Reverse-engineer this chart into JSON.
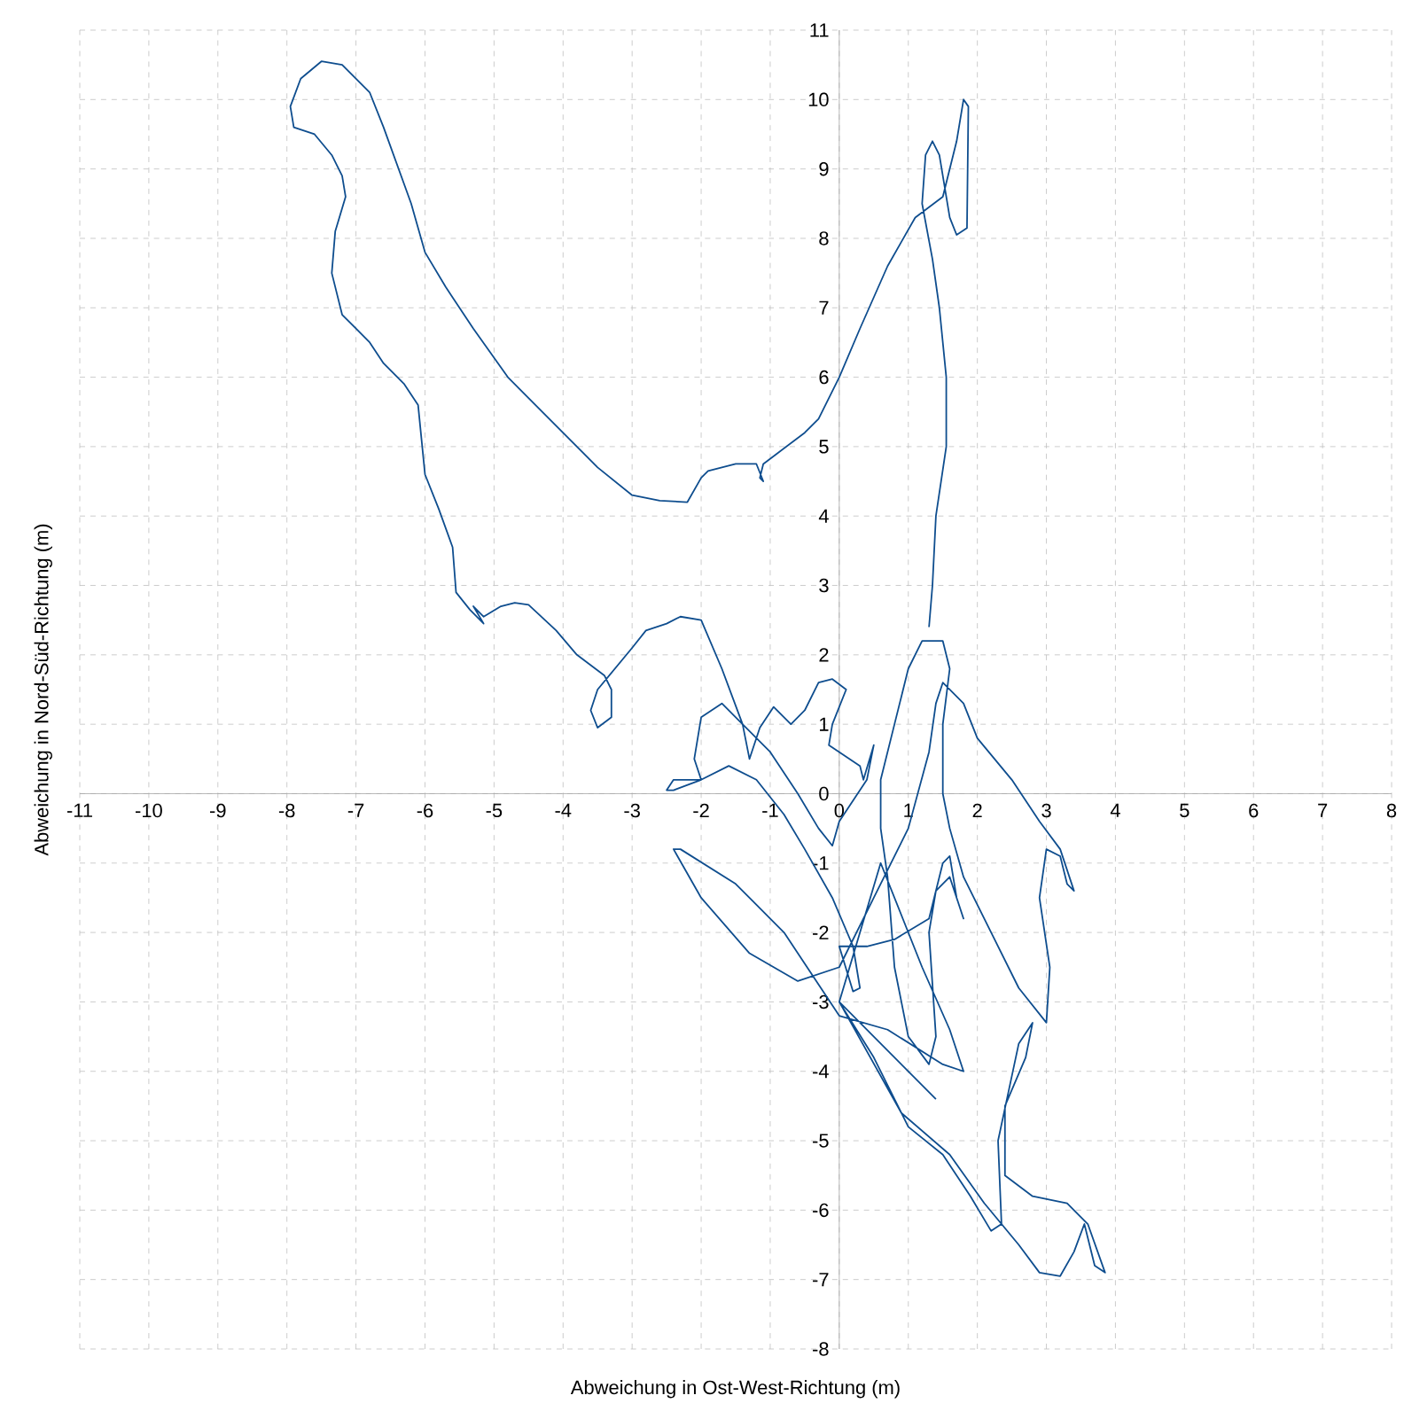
{
  "chart_data": {
    "type": "line",
    "xlabel": "Abweichung in Ost-West-Richtung (m)",
    "ylabel": "Abweichung in Nord-Süd-Richtung (m)",
    "xlim": [
      -11,
      8
    ],
    "ylim": [
      -8,
      11
    ],
    "xticks": [
      -11,
      -10,
      -9,
      -8,
      -7,
      -6,
      -5,
      -4,
      -3,
      -2,
      -1,
      0,
      1,
      2,
      3,
      4,
      5,
      6,
      7,
      8
    ],
    "yticks": [
      -8,
      -7,
      -6,
      -5,
      -4,
      -3,
      -2,
      -1,
      0,
      1,
      2,
      3,
      4,
      5,
      6,
      7,
      8,
      9,
      10,
      11
    ],
    "grid": true,
    "color": "#0e4d8e",
    "x": [
      1.3,
      1.35,
      1.4,
      1.55,
      1.55,
      1.45,
      1.35,
      1.2,
      1.25,
      1.35,
      1.45,
      1.6,
      1.7,
      1.85,
      1.87,
      1.8,
      1.7,
      1.5,
      1.1,
      0.7,
      0.3,
      0,
      -0.3,
      -0.5,
      -0.9,
      -1.1,
      -1.15,
      -1.1,
      -1.2,
      -1.5,
      -1.9,
      -2.0,
      -2.2,
      -2.6,
      -3.0,
      -3.5,
      -4.2,
      -4.8,
      -5.3,
      -5.7,
      -6.0,
      -6.2,
      -6.6,
      -6.8,
      -7.2,
      -7.5,
      -7.8,
      -7.95,
      -7.9,
      -7.6,
      -7.35,
      -7.2,
      -7.15,
      -7.3,
      -7.35,
      -7.2,
      -7.0,
      -6.8,
      -6.6,
      -6.3,
      -6.1,
      -6.05,
      -6.0,
      -5.8,
      -5.6,
      -5.55,
      -5.35,
      -5.15,
      -5.3,
      -5.15,
      -4.9,
      -4.7,
      -4.5,
      -4.1,
      -3.8,
      -3.4,
      -3.3,
      -3.3,
      -3.5,
      -3.6,
      -3.5,
      -3.0,
      -2.8,
      -2.5,
      -2.3,
      -2.0,
      -1.7,
      -1.4,
      -1.3,
      -1.15,
      -0.95,
      -0.7,
      -0.5,
      -0.3,
      -0.1,
      0.1,
      -0.1,
      -0.15,
      0.3,
      0.35,
      0.5,
      0.4,
      0.0,
      -0.1,
      -0.3,
      -0.6,
      -1.0,
      -1.4,
      -1.7,
      -2.0,
      -2.1,
      -2.0,
      -2.4,
      -2.5,
      -2.4,
      -2.0,
      -1.6,
      -1.2,
      -0.8,
      -0.5,
      -0.1,
      0.2,
      0.3,
      0.2,
      0.0,
      0.4,
      0.8,
      1.3,
      1.5,
      1.6,
      1.7,
      1.8,
      1.6,
      1.4,
      1.3,
      1.4,
      1.3,
      1.0,
      0.8,
      0.7,
      0.6,
      0.6,
      0.8,
      1.0,
      1.2,
      1.5,
      1.6,
      1.5,
      1.5,
      1.6,
      1.8,
      2.2,
      2.6,
      3.0,
      3.05,
      2.9,
      3.0,
      3.2,
      3.3,
      3.4,
      3.2,
      2.9,
      2.5,
      2.0,
      1.8,
      1.5,
      1.4,
      1.3,
      1.0,
      0.5,
      0.0,
      -0.6,
      -1.3,
      -2.0,
      -2.4,
      -2.3,
      -1.5,
      -0.8,
      0.0,
      0.7,
      1.5,
      1.8,
      1.6,
      1.2,
      0.6,
      0.0,
      0.5,
      1.0,
      1.5,
      1.9,
      2.2,
      2.35,
      2.3,
      2.6,
      2.8,
      2.7,
      2.4,
      2.4,
      2.8,
      3.3,
      3.6,
      3.85,
      3.7,
      3.55,
      3.4,
      3.2,
      2.9,
      2.6,
      2.1,
      1.6,
      0.9,
      0.0,
      1.4
    ],
    "values": [
      2.4,
      3.0,
      4.0,
      5.0,
      6.0,
      7.0,
      7.7,
      8.5,
      9.2,
      9.4,
      9.2,
      8.3,
      8.05,
      8.15,
      9.9,
      10.0,
      9.4,
      8.6,
      8.3,
      7.6,
      6.7,
      6.0,
      5.4,
      5.2,
      4.9,
      4.75,
      4.55,
      4.5,
      4.75,
      4.75,
      4.65,
      4.55,
      4.2,
      4.22,
      4.3,
      4.7,
      5.4,
      6.0,
      6.7,
      7.3,
      7.8,
      8.5,
      9.6,
      10.1,
      10.5,
      10.55,
      10.3,
      9.9,
      9.6,
      9.5,
      9.2,
      8.9,
      8.6,
      8.1,
      7.5,
      6.9,
      6.7,
      6.5,
      6.2,
      5.9,
      5.6,
      5.1,
      4.6,
      4.1,
      3.55,
      2.9,
      2.65,
      2.45,
      2.7,
      2.55,
      2.7,
      2.75,
      2.72,
      2.35,
      2.0,
      1.7,
      1.5,
      1.1,
      0.95,
      1.2,
      1.5,
      2.1,
      2.35,
      2.45,
      2.55,
      2.5,
      1.8,
      1.0,
      0.5,
      0.95,
      1.25,
      1.0,
      1.2,
      1.6,
      1.65,
      1.5,
      1.0,
      0.7,
      0.4,
      0.2,
      0.7,
      0.2,
      -0.4,
      -0.75,
      -0.5,
      0.0,
      0.6,
      1.0,
      1.3,
      1.1,
      0.5,
      0.2,
      0.2,
      0.05,
      0.05,
      0.2,
      0.4,
      0.2,
      -0.3,
      -0.8,
      -1.5,
      -2.2,
      -2.8,
      -2.85,
      -2.2,
      -2.2,
      -2.1,
      -1.8,
      -1.0,
      -0.9,
      -1.5,
      -1.8,
      -1.2,
      -1.4,
      -2.0,
      -3.5,
      -3.9,
      -3.5,
      -2.5,
      -1.2,
      -0.5,
      0.2,
      1.0,
      1.8,
      2.2,
      2.2,
      1.8,
      1.0,
      0.0,
      -0.5,
      -1.2,
      -2.0,
      -2.8,
      -3.3,
      -2.5,
      -1.5,
      -0.8,
      -0.9,
      -1.3,
      -1.4,
      -0.8,
      -0.4,
      0.2,
      0.8,
      1.3,
      1.6,
      1.3,
      0.6,
      -0.5,
      -1.5,
      -2.5,
      -2.7,
      -2.3,
      -1.5,
      -0.8,
      -0.8,
      -1.3,
      -2.0,
      -3.2,
      -3.4,
      -3.9,
      -4.0,
      -3.4,
      -2.5,
      -1.0,
      -3.0,
      -3.8,
      -4.8,
      -5.2,
      -5.8,
      -6.3,
      -6.2,
      -5.0,
      -3.6,
      -3.3,
      -3.8,
      -4.5,
      -5.5,
      -5.8,
      -5.9,
      -6.2,
      -6.9,
      -6.8,
      -6.2,
      -6.6,
      -6.95,
      -6.9,
      -6.5,
      -5.9,
      -5.2,
      -4.6,
      -3.0,
      -4.4
    ]
  }
}
